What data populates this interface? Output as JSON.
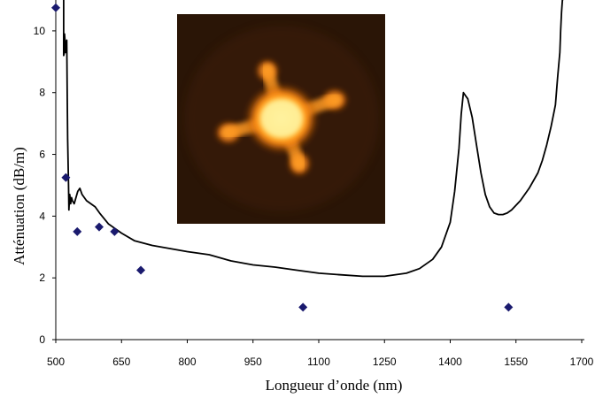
{
  "chart_data": {
    "type": "line",
    "xlabel": "Longueur d’onde (nm)",
    "ylabel": "Atténuation (dB/m)",
    "xlim": [
      500,
      1700
    ],
    "ylim": [
      0,
      11
    ],
    "xticks": [
      500,
      650,
      800,
      950,
      1100,
      1250,
      1400,
      1550,
      1700
    ],
    "yticks": [
      0,
      2,
      4,
      6,
      8,
      10
    ],
    "grid": false,
    "legend": "none",
    "series": [
      {
        "kind": "line",
        "color": "#000000",
        "x": [
          518,
          518,
          520,
          520,
          523,
          525,
          526,
          527,
          529,
          530,
          531,
          532,
          534,
          536,
          538,
          542,
          546,
          550,
          555,
          560,
          570,
          580,
          590,
          600,
          620,
          650,
          680,
          720,
          760,
          800,
          850,
          900,
          950,
          1000,
          1050,
          1100,
          1150,
          1200,
          1250,
          1300,
          1330,
          1360,
          1380,
          1400,
          1410,
          1420,
          1425,
          1430,
          1435,
          1440,
          1450,
          1460,
          1470,
          1480,
          1490,
          1500,
          1510,
          1520,
          1530,
          1540,
          1560,
          1580,
          1600,
          1610,
          1620,
          1630,
          1640,
          1645,
          1650,
          1652,
          1654,
          1656,
          1658
        ],
        "y": [
          11,
          9.2,
          9.3,
          9.9,
          9.3,
          9.7,
          8.0,
          6.5,
          5.0,
          4.2,
          4.5,
          4.7,
          4.4,
          4.6,
          4.5,
          4.4,
          4.6,
          4.8,
          4.9,
          4.7,
          4.5,
          4.4,
          4.3,
          4.1,
          3.75,
          3.45,
          3.2,
          3.05,
          2.95,
          2.85,
          2.75,
          2.55,
          2.42,
          2.35,
          2.25,
          2.15,
          2.1,
          2.05,
          2.05,
          2.15,
          2.3,
          2.6,
          3.0,
          3.8,
          4.8,
          6.2,
          7.3,
          8.0,
          7.9,
          7.8,
          7.2,
          6.3,
          5.4,
          4.7,
          4.3,
          4.1,
          4.05,
          4.05,
          4.1,
          4.2,
          4.5,
          4.9,
          5.4,
          5.8,
          6.3,
          6.9,
          7.6,
          8.5,
          9.3,
          10.0,
          10.6,
          11.0,
          11.0
        ]
      },
      {
        "kind": "scatter",
        "marker": "diamond",
        "color": "#1a1a6e",
        "x": [
          500,
          523,
          549,
          599,
          634,
          694,
          1064,
          1533
        ],
        "y": [
          10.75,
          5.25,
          3.5,
          3.65,
          3.5,
          2.25,
          1.05,
          1.05
        ]
      }
    ],
    "inset_image": {
      "name": "fiber-core-photo",
      "background": "#2a1506",
      "glow_colors": [
        "#fff6a0",
        "#ffd23c",
        "#ff8c14",
        "#9a3c05"
      ]
    }
  }
}
